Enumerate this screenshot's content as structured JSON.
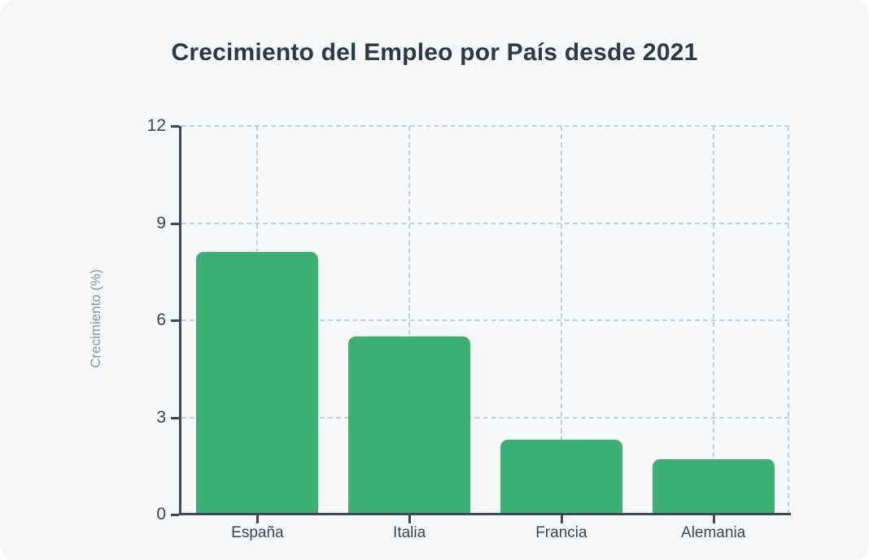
{
  "page": {
    "background_color": "#ffffff",
    "card_background_color": "#f7f8fa"
  },
  "chart_data": {
    "type": "bar",
    "title": "Crecimiento del Empleo por País desde 2021",
    "xlabel": "",
    "ylabel": "Crecimiento (%)",
    "categories": [
      "España",
      "Italia",
      "Francia",
      "Alemania"
    ],
    "values": [
      8.1,
      5.5,
      2.3,
      1.7
    ],
    "ylim": [
      0,
      12
    ],
    "yticks": [
      0,
      3,
      6,
      9,
      12
    ],
    "grid": "dashed, horizontal at yticks and vertical at category centers plus right edge",
    "legend": "none",
    "bar_color": "#3bb273",
    "axis_color": "#3f4756",
    "tick_label_color": "#3d4451",
    "axis_title_color": "#8d939e",
    "grid_color": "#c8cdd5",
    "title_color": "#2e3947"
  }
}
